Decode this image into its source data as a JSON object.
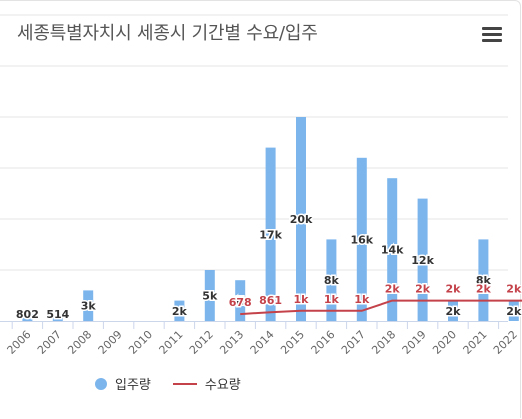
{
  "header": {
    "title": "세종특별자치시 세종시 기간별 수요/입주",
    "menu_icon": "hamburger-menu-icon"
  },
  "colors": {
    "bar": "#7cb5ec",
    "line": "#c4424a",
    "grid": "#e6e6e6"
  },
  "chart_data": {
    "type": "bar",
    "title": "세종특별자치시 세종시 기간별 수요/입주",
    "categories": [
      "2005",
      "2006",
      "2007",
      "2008",
      "2009",
      "2010",
      "2011",
      "2012",
      "2013",
      "2014",
      "2015",
      "2016",
      "2017",
      "2018",
      "2019",
      "2020",
      "2021",
      "2022",
      "2023"
    ],
    "ylim": [
      0,
      30000
    ],
    "grid": true,
    "legend_position": "bottom",
    "series": [
      {
        "name": "입주량",
        "type": "bar",
        "values": [
          0,
          802,
          514,
          3000,
          0,
          0,
          2000,
          5000,
          4000,
          17000,
          20000,
          8000,
          16000,
          14000,
          12000,
          2000,
          8000,
          2000,
          null
        ],
        "labels": [
          "",
          "802",
          "514",
          "3k",
          "",
          "",
          "2k",
          "5k",
          "4k",
          "17k",
          "20k",
          "8k",
          "16k",
          "14k",
          "12k",
          "2k",
          "8k",
          "2k",
          ""
        ]
      },
      {
        "name": "수요량",
        "type": "line",
        "values": [
          null,
          null,
          null,
          null,
          null,
          null,
          null,
          null,
          678,
          861,
          1000,
          1000,
          1000,
          2000,
          2000,
          2000,
          2000,
          2000,
          2000
        ],
        "labels": [
          "",
          "",
          "",
          "",
          "",
          "",
          "",
          "",
          "678",
          "861",
          "1k",
          "1k",
          "1k",
          "2k",
          "2k",
          "2k",
          "2k",
          "2k",
          "2k"
        ]
      }
    ]
  }
}
